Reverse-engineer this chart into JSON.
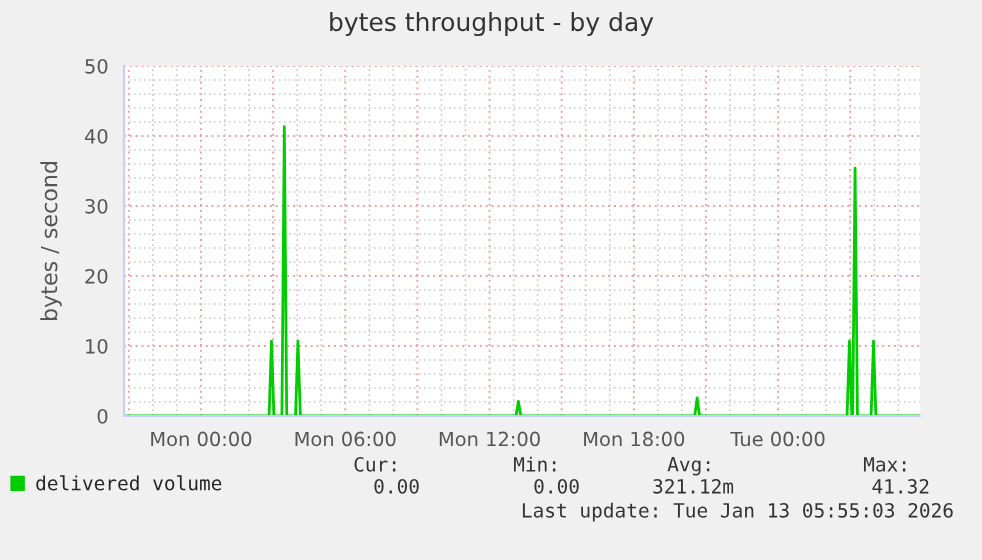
{
  "chart_data": {
    "type": "line",
    "title": "bytes throughput - by day",
    "ylabel": "bytes / second",
    "x": [
      "2026-01-11T20:48",
      "2026-01-12T02:50",
      "2026-01-12T02:56",
      "2026-01-12T03:02",
      "2026-01-12T03:22",
      "2026-01-12T03:28",
      "2026-01-12T03:34",
      "2026-01-12T03:56",
      "2026-01-12T04:02",
      "2026-01-12T04:08",
      "2026-01-12T13:06",
      "2026-01-12T13:12",
      "2026-01-12T13:18",
      "2026-01-12T20:32",
      "2026-01-12T20:38",
      "2026-01-12T20:44",
      "2026-01-13T02:52",
      "2026-01-13T02:58",
      "2026-01-13T03:04",
      "2026-01-13T03:06",
      "2026-01-13T03:12",
      "2026-01-13T03:18",
      "2026-01-13T03:52",
      "2026-01-13T03:58",
      "2026-01-13T04:04",
      "2026-01-13T05:54"
    ],
    "series": [
      {
        "name": "delivered volume",
        "color": "#00cc00",
        "values": [
          0,
          0,
          10.7,
          0,
          0,
          41.32,
          0,
          0,
          10.7,
          0,
          0,
          2.1,
          0,
          0,
          2.6,
          0,
          0,
          10.7,
          0,
          0,
          35.4,
          0,
          0,
          10.7,
          0,
          0
        ]
      }
    ],
    "xlim": [
      "2026-01-11T20:48",
      "2026-01-13T05:54"
    ],
    "xticks": [
      {
        "value": "2026-01-11T21:00",
        "label": null
      },
      {
        "value": "2026-01-12T00:00",
        "label": "Mon 00:00"
      },
      {
        "value": "2026-01-12T03:00",
        "label": null
      },
      {
        "value": "2026-01-12T06:00",
        "label": "Mon 06:00"
      },
      {
        "value": "2026-01-12T09:00",
        "label": null
      },
      {
        "value": "2026-01-12T12:00",
        "label": "Mon 12:00"
      },
      {
        "value": "2026-01-12T15:00",
        "label": null
      },
      {
        "value": "2026-01-12T18:00",
        "label": "Mon 18:00"
      },
      {
        "value": "2026-01-12T21:00",
        "label": null
      },
      {
        "value": "2026-01-13T00:00",
        "label": "Tue 00:00"
      },
      {
        "value": "2026-01-13T03:00",
        "label": null
      }
    ],
    "ylim": [
      0,
      50
    ],
    "yticks": [
      0,
      10,
      20,
      30,
      40,
      50
    ],
    "grid": true,
    "legend": "bottom left",
    "marker": "none",
    "line_style": "solid",
    "annotations": [
      "Cur:",
      "Min:",
      "Avg:",
      "Max:",
      "0.00",
      "0.00",
      "321.12m",
      "41.32",
      "Last update: Tue Jan 13 05:55:03 2026"
    ]
  }
}
